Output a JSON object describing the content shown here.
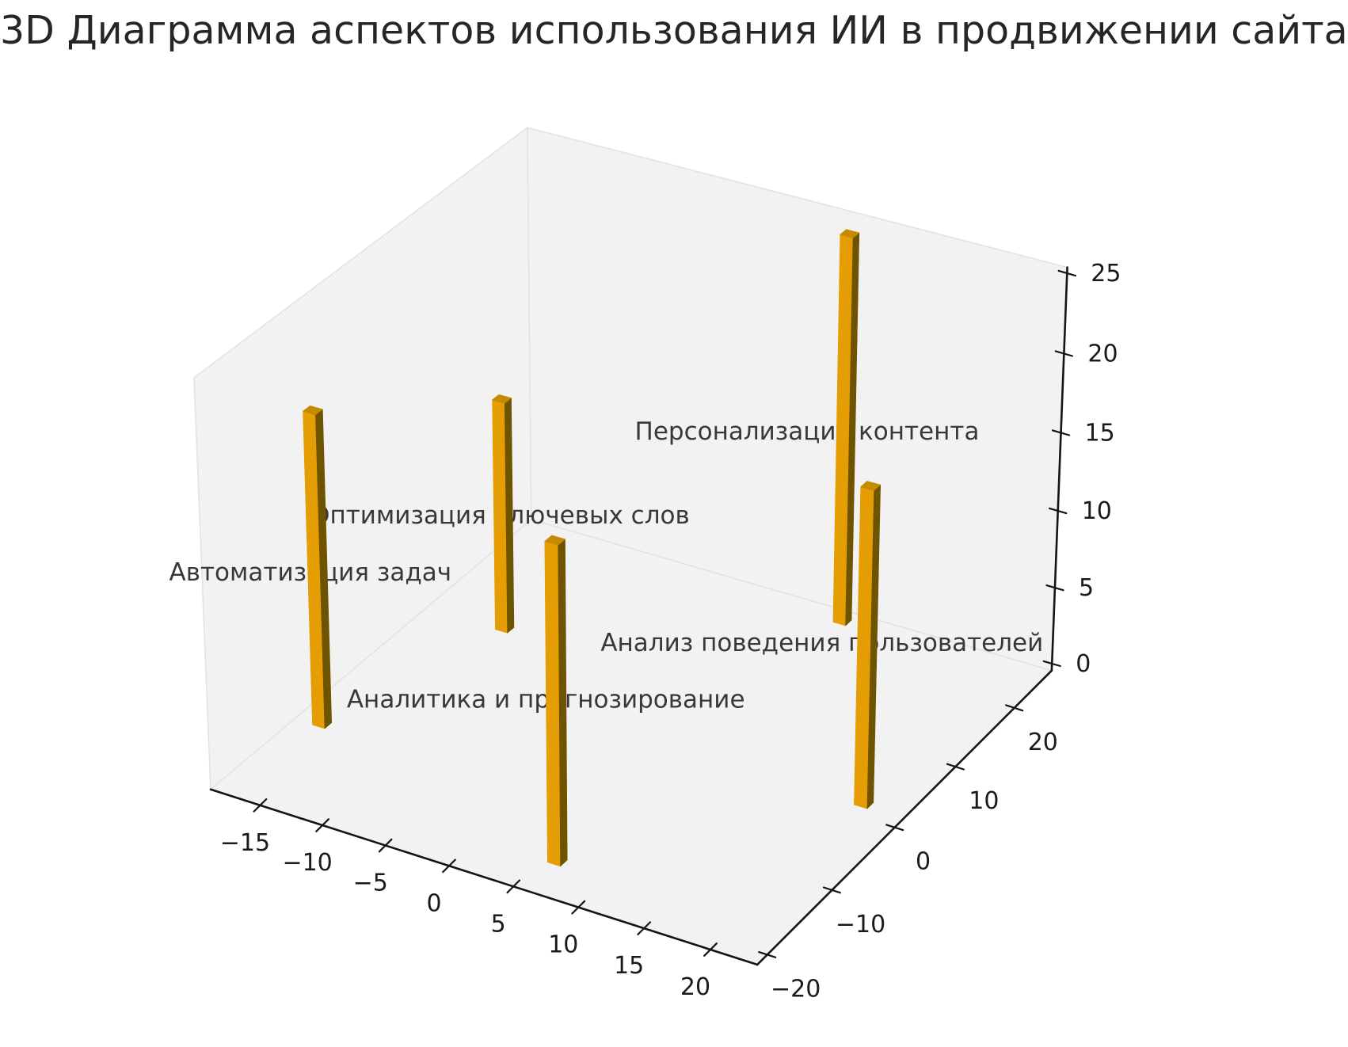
{
  "chart_data": {
    "type": "bar3d",
    "title": "3D Диаграмма аспектов использования ИИ в продвижении сайта",
    "categories": [
      "Автоматизация задач",
      "Оптимизация ключевых слов",
      "Аналитика и прогнозирование",
      "Персонализация контента",
      "Анализ поведения пользователей"
    ],
    "values": [
      20,
      15,
      20,
      25,
      20
    ],
    "x": [
      -16.5,
      -12.2,
      6.4,
      8.0,
      20.7
    ],
    "y": [
      -10.0,
      9.5,
      -17.7,
      24.0,
      0.9
    ],
    "bar_dx": 1,
    "bar_dy": 1,
    "axes": {
      "x_ticks": [
        -15,
        -10,
        -5,
        0,
        5,
        10,
        15,
        20
      ],
      "y_ticks": [
        -20,
        -10,
        0,
        10,
        20
      ],
      "z_ticks": [
        0,
        5,
        10,
        15,
        20,
        25
      ],
      "xlim": [
        -19,
        23.5
      ],
      "ylim": [
        -21.5,
        26.5
      ],
      "zlim": [
        -0.46,
        25.36
      ],
      "grid": false,
      "legend": "none"
    },
    "view": {
      "elev": 30,
      "azim": -60,
      "dist": 10
    },
    "colors": {
      "bar_front": "#e49d03",
      "bar_side": "#6e5300",
      "bar_top": "#c58a00",
      "pane": "#f2f2f2",
      "pane_edge": "#e3e3e3",
      "axis": "#141414",
      "tick_label": "#1a1a1a",
      "annotation": "#383838",
      "background": "#ffffff"
    }
  }
}
